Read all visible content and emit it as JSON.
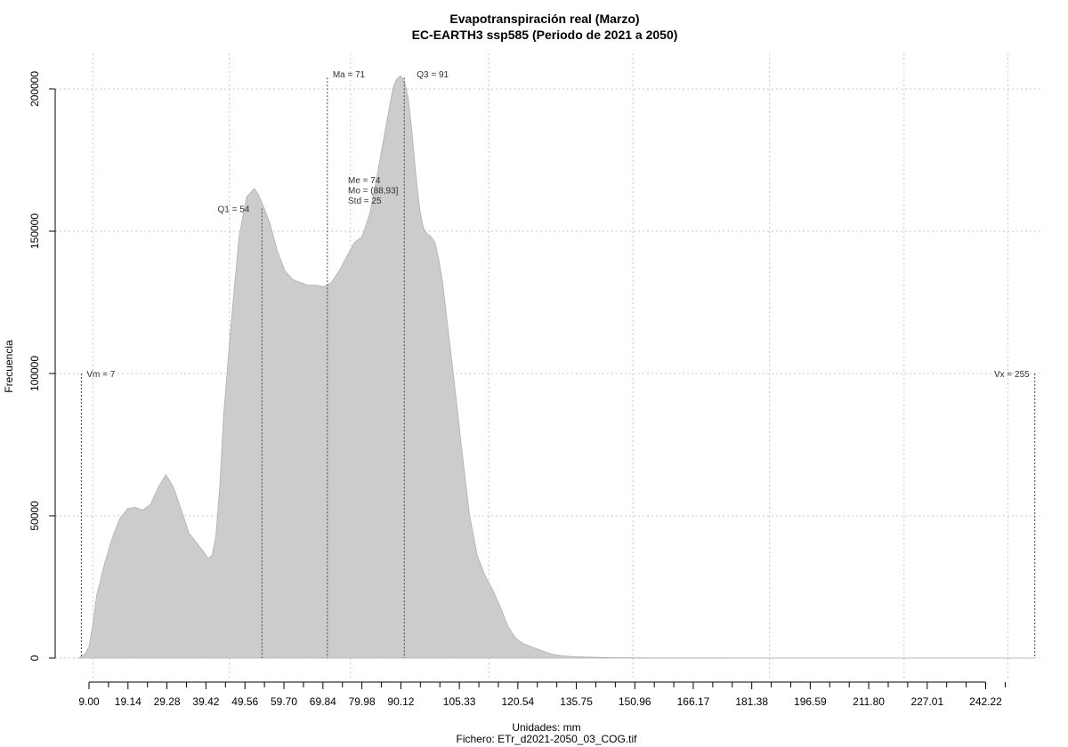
{
  "chart_data": {
    "type": "area",
    "title": "Evapotranspiración real (Marzo)",
    "subtitle": "EC-EARTH3 ssp585 (Periodo de 2021 a 2050)",
    "xlabel": "Unidades: mm",
    "ylabel": "Frecuencia",
    "caption": "Fichero: ETr_d2021-2050_03_COG.tif",
    "xlim": [
      0,
      260
    ],
    "ylim": [
      0,
      210000
    ],
    "grid": true,
    "x_ticks": [
      "9.00",
      "19.14",
      "29.28",
      "39.42",
      "49.56",
      "59.70",
      "69.84",
      "79.98",
      "90.12",
      "105.33",
      "120.54",
      "135.75",
      "150.96",
      "166.17",
      "181.38",
      "196.59",
      "211.80",
      "227.01",
      "242.22"
    ],
    "x_tick_minor": [
      "14.07",
      "24.21",
      "34.35",
      "44.49",
      "54.63",
      "64.77",
      "74.91",
      "85.05",
      "95.19",
      "100.26",
      "110.40",
      "115.47",
      "125.61",
      "130.68",
      "140.82",
      "145.89",
      "156.03",
      "161.10",
      "171.24",
      "176.31",
      "186.45",
      "191.52",
      "201.66",
      "206.73",
      "216.87",
      "221.94",
      "232.08",
      "237.15",
      "247.29"
    ],
    "y_ticks": [
      "0",
      "50000",
      "100000",
      "150000",
      "200000"
    ],
    "y_tick_values": [
      0,
      50000,
      100000,
      150000,
      200000
    ],
    "x": [
      6.5,
      8,
      9,
      10,
      11,
      13,
      15,
      17,
      19,
      21,
      23,
      25,
      27,
      29,
      31,
      33,
      35,
      37,
      39,
      40,
      41,
      42,
      43,
      44,
      46,
      48,
      50,
      52,
      53,
      54,
      56,
      58,
      60,
      62,
      64,
      66,
      68,
      70,
      71,
      72,
      74,
      76,
      78,
      80,
      82,
      84,
      86,
      88,
      89,
      90,
      91,
      92,
      93,
      94,
      95,
      96,
      97,
      98,
      99,
      100,
      101,
      102,
      104,
      106,
      108,
      110,
      112,
      114,
      116,
      118,
      120,
      122,
      124,
      126,
      128,
      130,
      132,
      135,
      140,
      145,
      150,
      160,
      180,
      200,
      220,
      240,
      250,
      253,
      255
    ],
    "values": [
      0,
      1500,
      4000,
      12000,
      22000,
      33000,
      42000,
      49000,
      52500,
      53000,
      52000,
      54000,
      60000,
      64500,
      60000,
      52000,
      44000,
      40500,
      37000,
      35000,
      36000,
      43000,
      60000,
      85000,
      118000,
      148000,
      162000,
      165000,
      163000,
      160000,
      153000,
      143000,
      136000,
      133000,
      132000,
      131000,
      131000,
      130500,
      131000,
      132000,
      136000,
      141000,
      146000,
      148000,
      156000,
      170000,
      185000,
      200000,
      203500,
      204500,
      203000,
      197000,
      185000,
      170000,
      158000,
      151000,
      149000,
      148000,
      146000,
      140000,
      132000,
      120000,
      97000,
      73000,
      50000,
      36000,
      29000,
      24000,
      18000,
      11000,
      7000,
      5000,
      4000,
      3000,
      2000,
      1200,
      800,
      500,
      300,
      150,
      80,
      50,
      40,
      40,
      40,
      40,
      30,
      10,
      0
    ],
    "stats": {
      "vm": {
        "label": "Vm = 7",
        "x": 7,
        "y": 100000
      },
      "q1": {
        "label": "Q1 = 54",
        "x": 54,
        "y": 158000
      },
      "ma": {
        "label": "Ma = 71",
        "x": 71,
        "y": 204000
      },
      "q3": {
        "label": "Q3 = 91",
        "x": 91,
        "y": 204000
      },
      "vx": {
        "label": "Vx = 255",
        "x": 255,
        "y": 100000
      }
    },
    "summary_labels": [
      "Me = 74",
      "Mo = (88,93]",
      "Std = 25"
    ]
  }
}
